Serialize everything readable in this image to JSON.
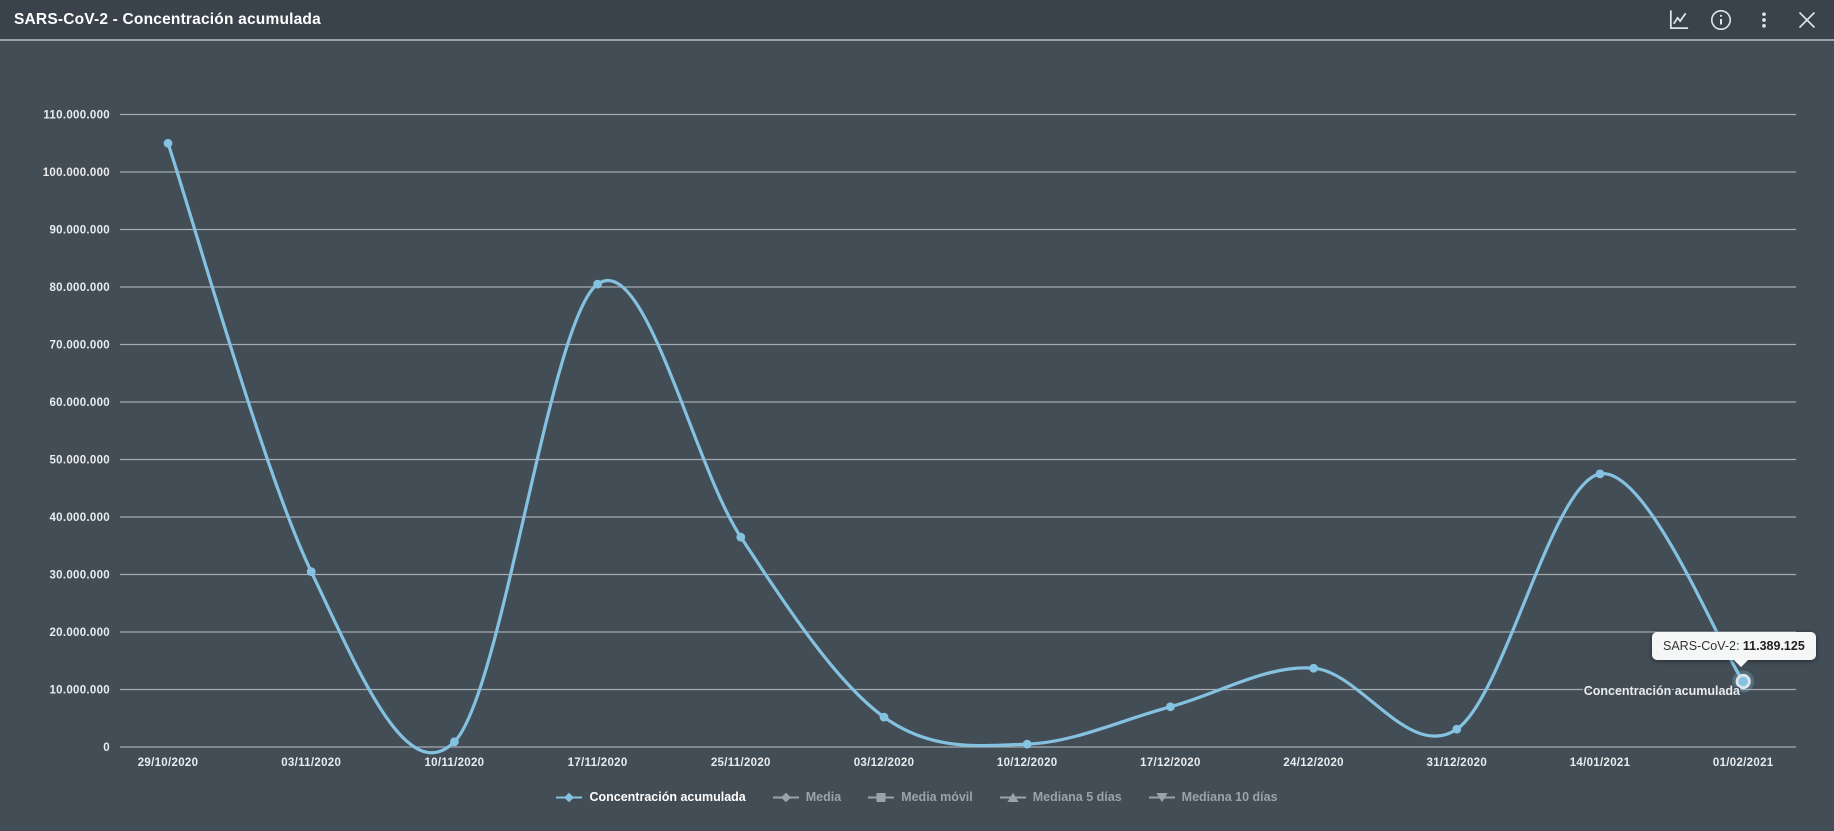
{
  "header": {
    "title": "SARS-CoV-2 - Concentración acumulada",
    "icons": [
      {
        "name": "chart-line-icon"
      },
      {
        "name": "info-icon"
      },
      {
        "name": "kebab-menu-icon"
      },
      {
        "name": "close-icon"
      }
    ]
  },
  "colors": {
    "header_bg": "#3a434c",
    "body_bg": "#434d55",
    "divider": "#97a2ab",
    "series": "#85c1e0",
    "gridline": "#b5bdc3",
    "axis_label": "#e8ecee",
    "legend_active_text": "#ffffff",
    "legend_inactive": "#99a3ab",
    "tooltip_bg": "#f5f6f6",
    "hover_ring": "#dde4e9"
  },
  "chart_data": {
    "type": "line",
    "shape": "spline",
    "title": "SARS-CoV-2 - Concentración acumulada",
    "xlabel": "",
    "ylabel": "",
    "grid": true,
    "legend_position": "bottom",
    "ylim": [
      0,
      110000000
    ],
    "y_tick_step": 10000000,
    "y_tick_labels": [
      "0",
      "10.000.000",
      "20.000.000",
      "30.000.000",
      "40.000.000",
      "50.000.000",
      "60.000.000",
      "70.000.000",
      "80.000.000",
      "90.000.000",
      "100.000.000",
      "110.000.000"
    ],
    "categories": [
      "29/10/2020",
      "03/11/2020",
      "10/11/2020",
      "17/11/2020",
      "25/11/2020",
      "03/12/2020",
      "10/12/2020",
      "17/12/2020",
      "24/12/2020",
      "31/12/2020",
      "14/01/2021",
      "01/02/2021"
    ],
    "series": [
      {
        "name": "Concentración acumulada",
        "color": "#85c1e0",
        "visible": true,
        "values": [
          105000000,
          30500000,
          900000,
          80500000,
          36500000,
          5200000,
          500000,
          7000000,
          13700000,
          3100000,
          47500000,
          11389125
        ]
      }
    ],
    "series_label": "Concentración acumulada",
    "hovered_point_index": 11
  },
  "tooltip": {
    "label": "SARS-CoV-2:",
    "value": "11.389.125"
  },
  "legend": {
    "items": [
      {
        "label": "Concentración acumulada",
        "marker": "diamond",
        "active": true
      },
      {
        "label": "Media",
        "marker": "diamond",
        "active": false
      },
      {
        "label": "Media móvil",
        "marker": "square",
        "active": false
      },
      {
        "label": "Mediana 5 días",
        "marker": "triangle-up",
        "active": false
      },
      {
        "label": "Mediana 10 días",
        "marker": "triangle-down",
        "active": false
      }
    ]
  }
}
